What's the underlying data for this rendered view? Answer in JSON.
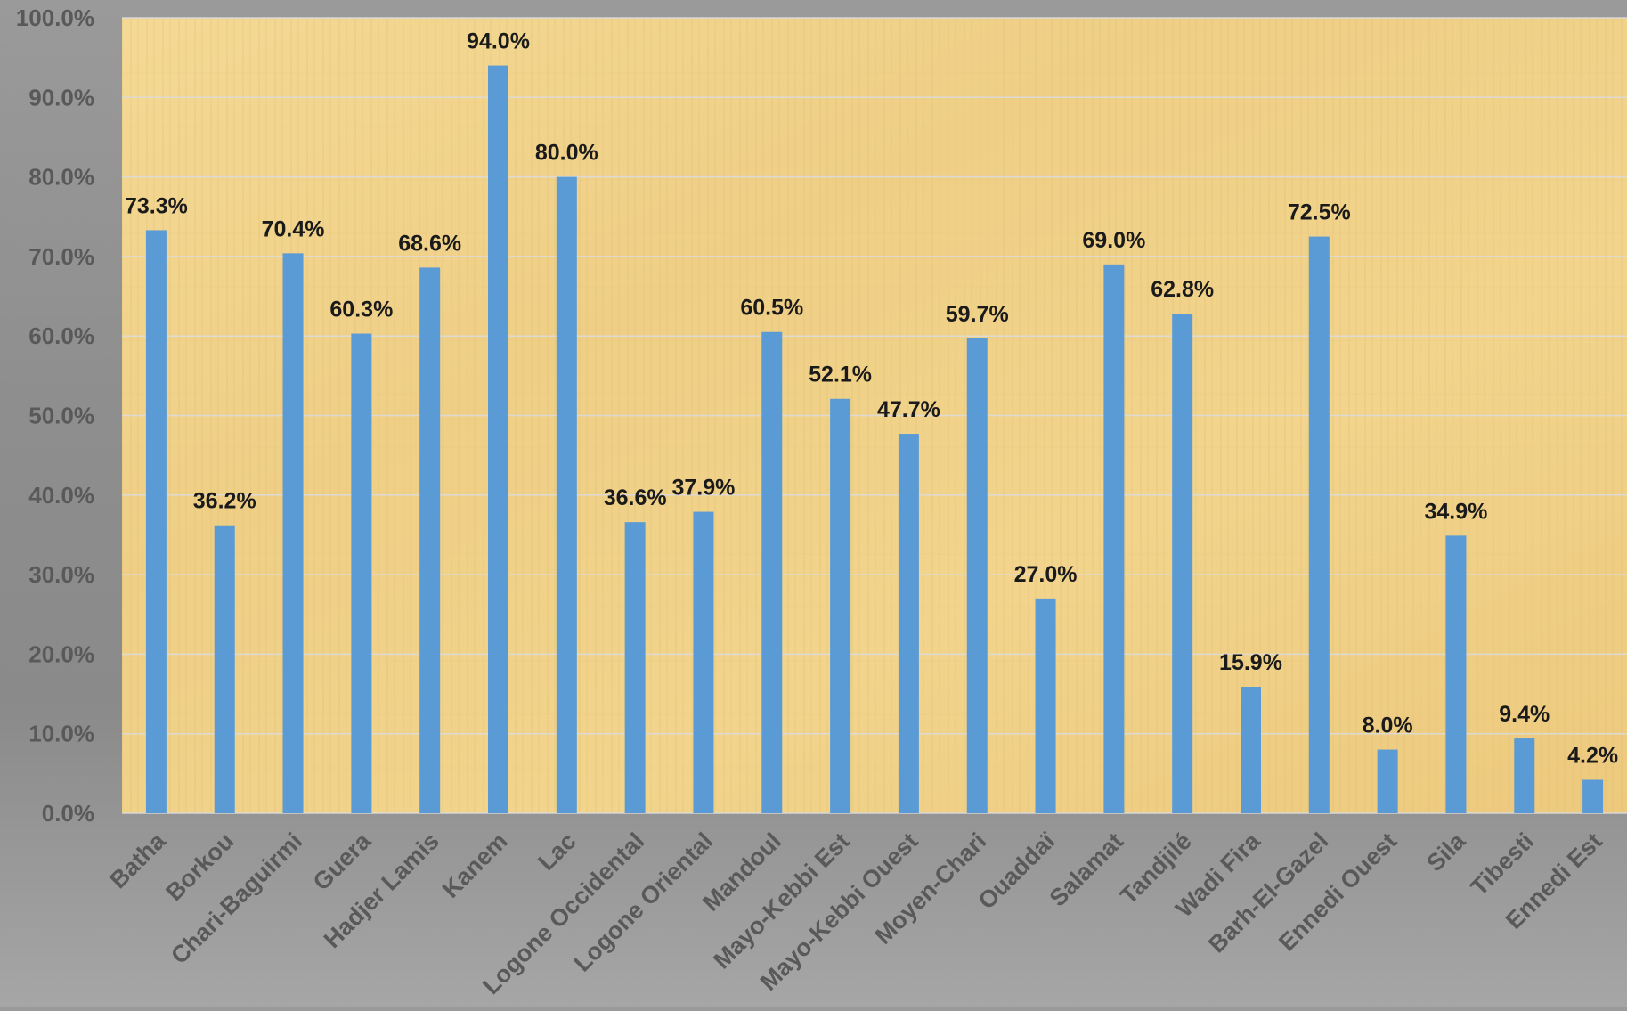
{
  "chart_data": {
    "type": "bar",
    "title": "",
    "xlabel": "",
    "ylabel": "",
    "ylim": [
      0,
      100
    ],
    "yticks": [
      "0.0%",
      "10.0%",
      "20.0%",
      "30.0%",
      "40.0%",
      "50.0%",
      "60.0%",
      "70.0%",
      "80.0%",
      "90.0%",
      "100.0%"
    ],
    "grid": true,
    "legend": "none",
    "categories": [
      "Batha",
      "Borkou",
      "Chari-Baguirmi",
      "Guera",
      "Hadjer Lamis",
      "Kanem",
      "Lac",
      "Logone Occidental",
      "Logone Oriental",
      "Mandoul",
      "Mayo-Kebbi Est",
      "Mayo-Kebbi Ouest",
      "Moyen-Chari",
      "Ouaddaï",
      "Salamat",
      "Tandjilé",
      "Wadi Fira",
      "Barh-El-Gazel",
      "Ennedi Ouest",
      "Sila",
      "Tibesti",
      "Ennedi Est"
    ],
    "values": [
      73.3,
      36.2,
      70.4,
      60.3,
      68.6,
      94.0,
      80.0,
      36.6,
      37.9,
      60.5,
      52.1,
      47.7,
      59.7,
      27.0,
      69.0,
      62.8,
      15.9,
      72.5,
      8.0,
      34.9,
      9.4,
      4.2
    ],
    "data_labels": [
      "73.3%",
      "36.2%",
      "70.4%",
      "60.3%",
      "68.6%",
      "94.0%",
      "80.0%",
      "36.6%",
      "37.9%",
      "60.5%",
      "52.1%",
      "47.7%",
      "59.7%",
      "27.0%",
      "69.0%",
      "62.8%",
      "15.9%",
      "72.5%",
      "8.0%",
      "34.9%",
      "9.4%",
      "4.2%"
    ],
    "colors": {
      "bar": "#5b9bd5",
      "plot_background": "#f0d38f",
      "gridline": "#dcdcdc",
      "label_text": "#1a1a1a",
      "axis_text": "#595959",
      "page_background": "#9a9a9a"
    }
  }
}
